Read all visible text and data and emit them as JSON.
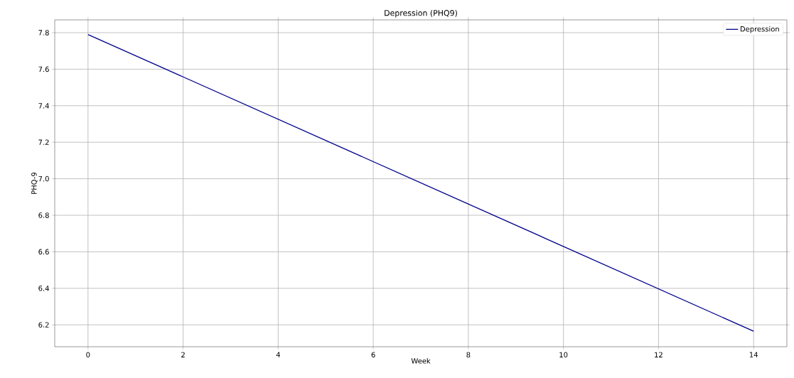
{
  "chart_data": {
    "type": "line",
    "title": "Depression (PHQ9)",
    "xlabel": "Week",
    "ylabel": "PHQ-9",
    "x": [
      0,
      14
    ],
    "series": [
      {
        "name": "Depression",
        "color": "#00008b",
        "values": [
          7.79,
          6.165
        ]
      }
    ],
    "xlim": [
      -0.7,
      14.7
    ],
    "ylim": [
      6.08,
      7.87
    ],
    "xticks": [
      0,
      2,
      4,
      6,
      8,
      10,
      12,
      14
    ],
    "yticks": [
      6.2,
      6.4,
      6.6,
      6.8,
      {
        "value": 7,
        "label": "7.0"
      },
      7.2,
      7.4,
      7.6,
      7.8
    ],
    "grid": true,
    "legend": "top right",
    "marker": "none",
    "line_style": "solid"
  }
}
